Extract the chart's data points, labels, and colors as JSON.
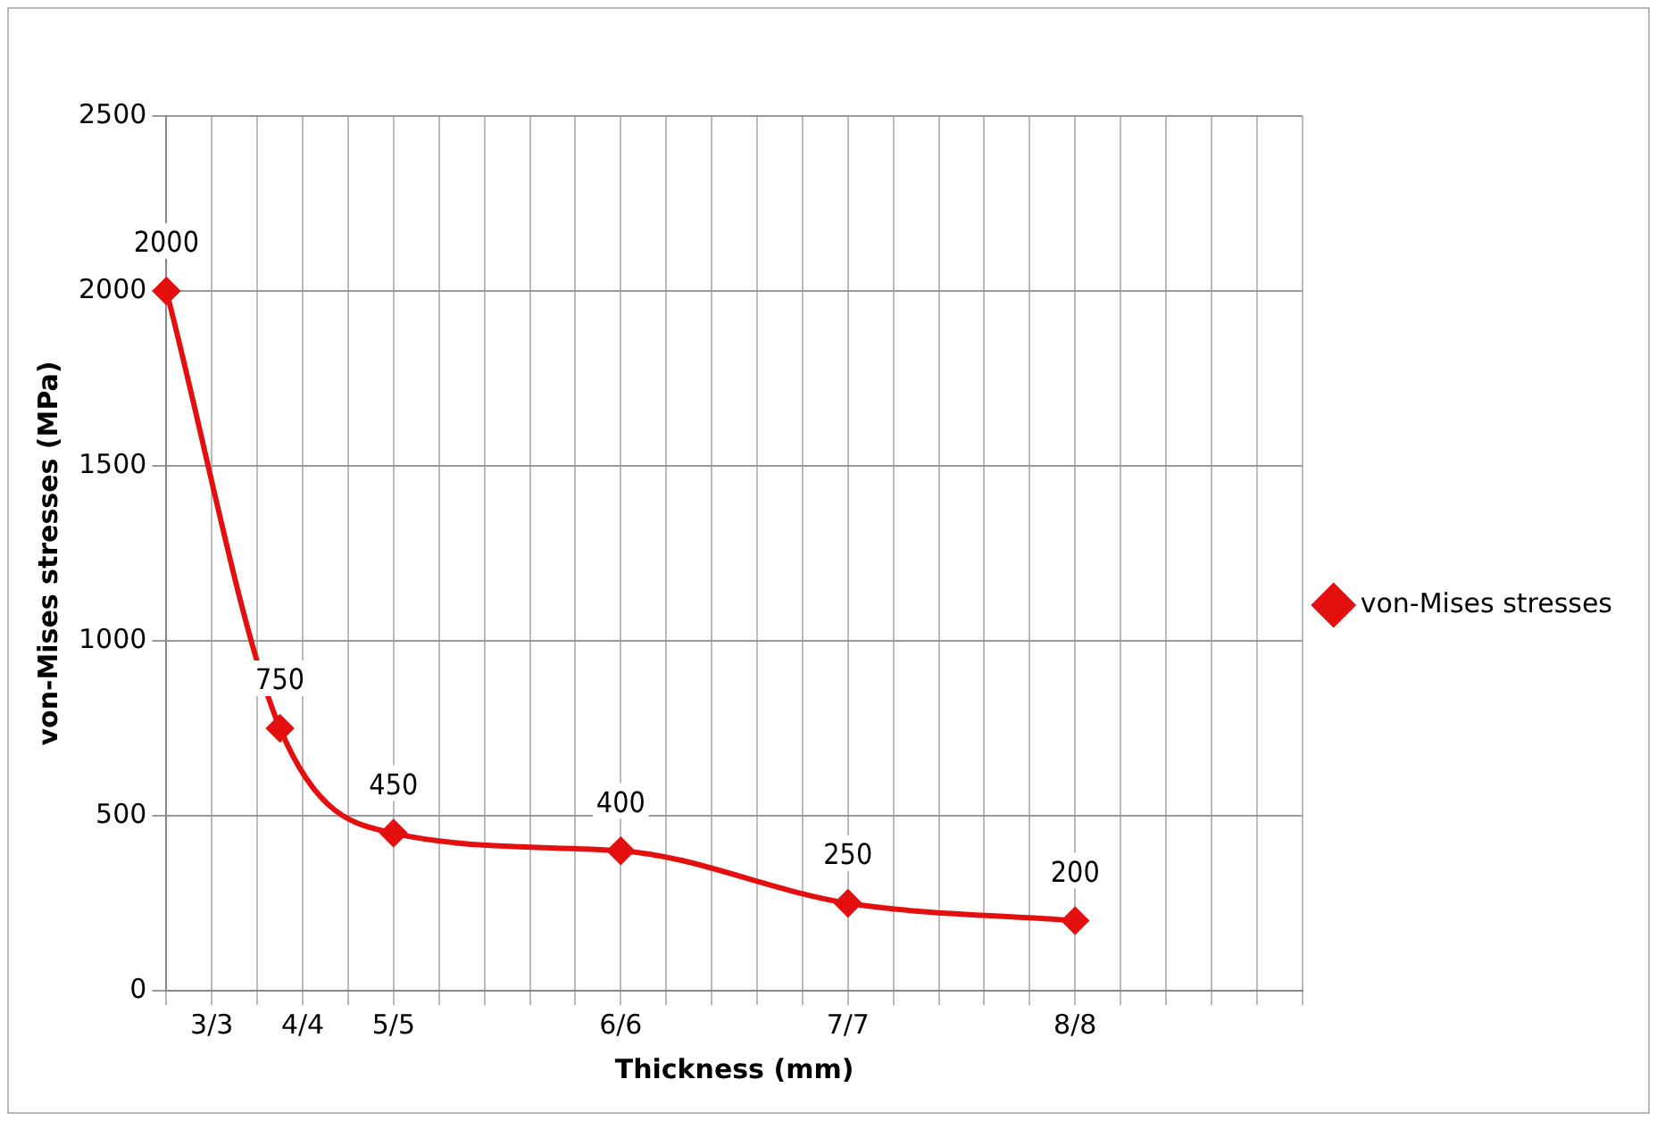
{
  "chart_data": {
    "type": "line",
    "xlabel": "Thickness (mm)",
    "ylabel": "von-Mises stresses (MPa)",
    "categories": [
      null,
      null,
      "3/3",
      null,
      null,
      null,
      "4/4",
      null,
      null,
      null,
      "5/5",
      null,
      null,
      null,
      null,
      null,
      null,
      null,
      null,
      null,
      "6/6",
      null,
      null,
      null,
      null,
      null,
      null,
      null,
      null,
      null,
      "7/7",
      null,
      null,
      null,
      null,
      null,
      null,
      null,
      null,
      null,
      "8/8",
      null,
      null,
      null,
      null,
      null,
      null,
      null,
      null,
      null,
      null
    ],
    "series": [
      {
        "name": "von-Mises stresses",
        "color": "#e41010",
        "values": [
          2000,
          null,
          null,
          null,
          null,
          750,
          null,
          null,
          null,
          null,
          450,
          null,
          null,
          null,
          null,
          null,
          null,
          null,
          null,
          null,
          400,
          null,
          null,
          null,
          null,
          null,
          null,
          null,
          null,
          null,
          250,
          null,
          null,
          null,
          null,
          null,
          null,
          null,
          null,
          null,
          200,
          null,
          null,
          null,
          null,
          null,
          null,
          null,
          null,
          null,
          null
        ]
      }
    ],
    "ylim": [
      0,
      2500
    ],
    "yticks": [
      0,
      500,
      1000,
      1500,
      2000,
      2500
    ],
    "grid": true,
    "legend": "right",
    "marker": "diamond",
    "line_style": "solid",
    "data_labels": true
  }
}
